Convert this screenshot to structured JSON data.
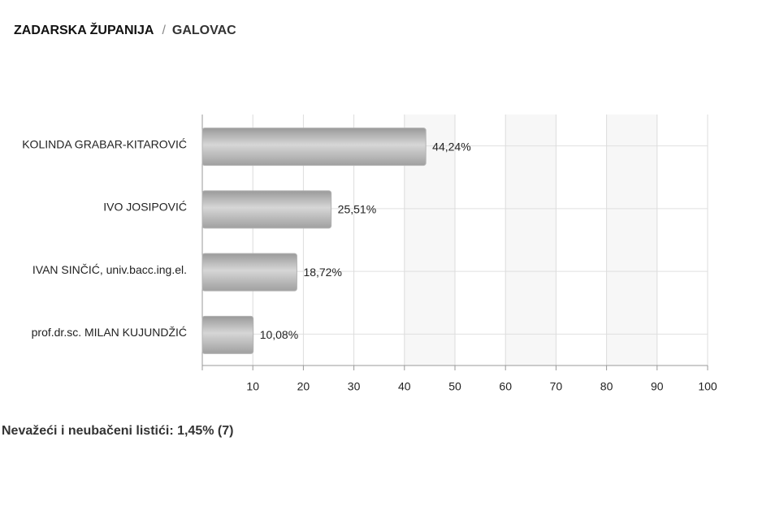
{
  "header": {
    "region": "ZADARSKA ŽUPANIJA",
    "separator": "/",
    "place": "GALOVAC"
  },
  "chart_data": {
    "type": "bar",
    "orientation": "horizontal",
    "categories": [
      "KOLINDA GRABAR-KITAROVIĆ",
      "IVO JOSIPOVIĆ",
      "IVAN SINČIĆ, univ.bacc.ing.el.",
      "prof.dr.sc. MILAN KUJUNDŽIĆ"
    ],
    "values": [
      44.24,
      25.51,
      18.72,
      10.08
    ],
    "value_labels": [
      "44,24%",
      "25,51%",
      "18,72%",
      "10,08%"
    ],
    "color": "#b3b3b3",
    "xlim": [
      0,
      100
    ],
    "xticks": [
      10,
      20,
      30,
      40,
      50,
      60,
      70,
      80,
      90,
      100
    ],
    "grid": true
  },
  "footer": "Nevažeći i neubačeni listići: 1,45% (7)"
}
